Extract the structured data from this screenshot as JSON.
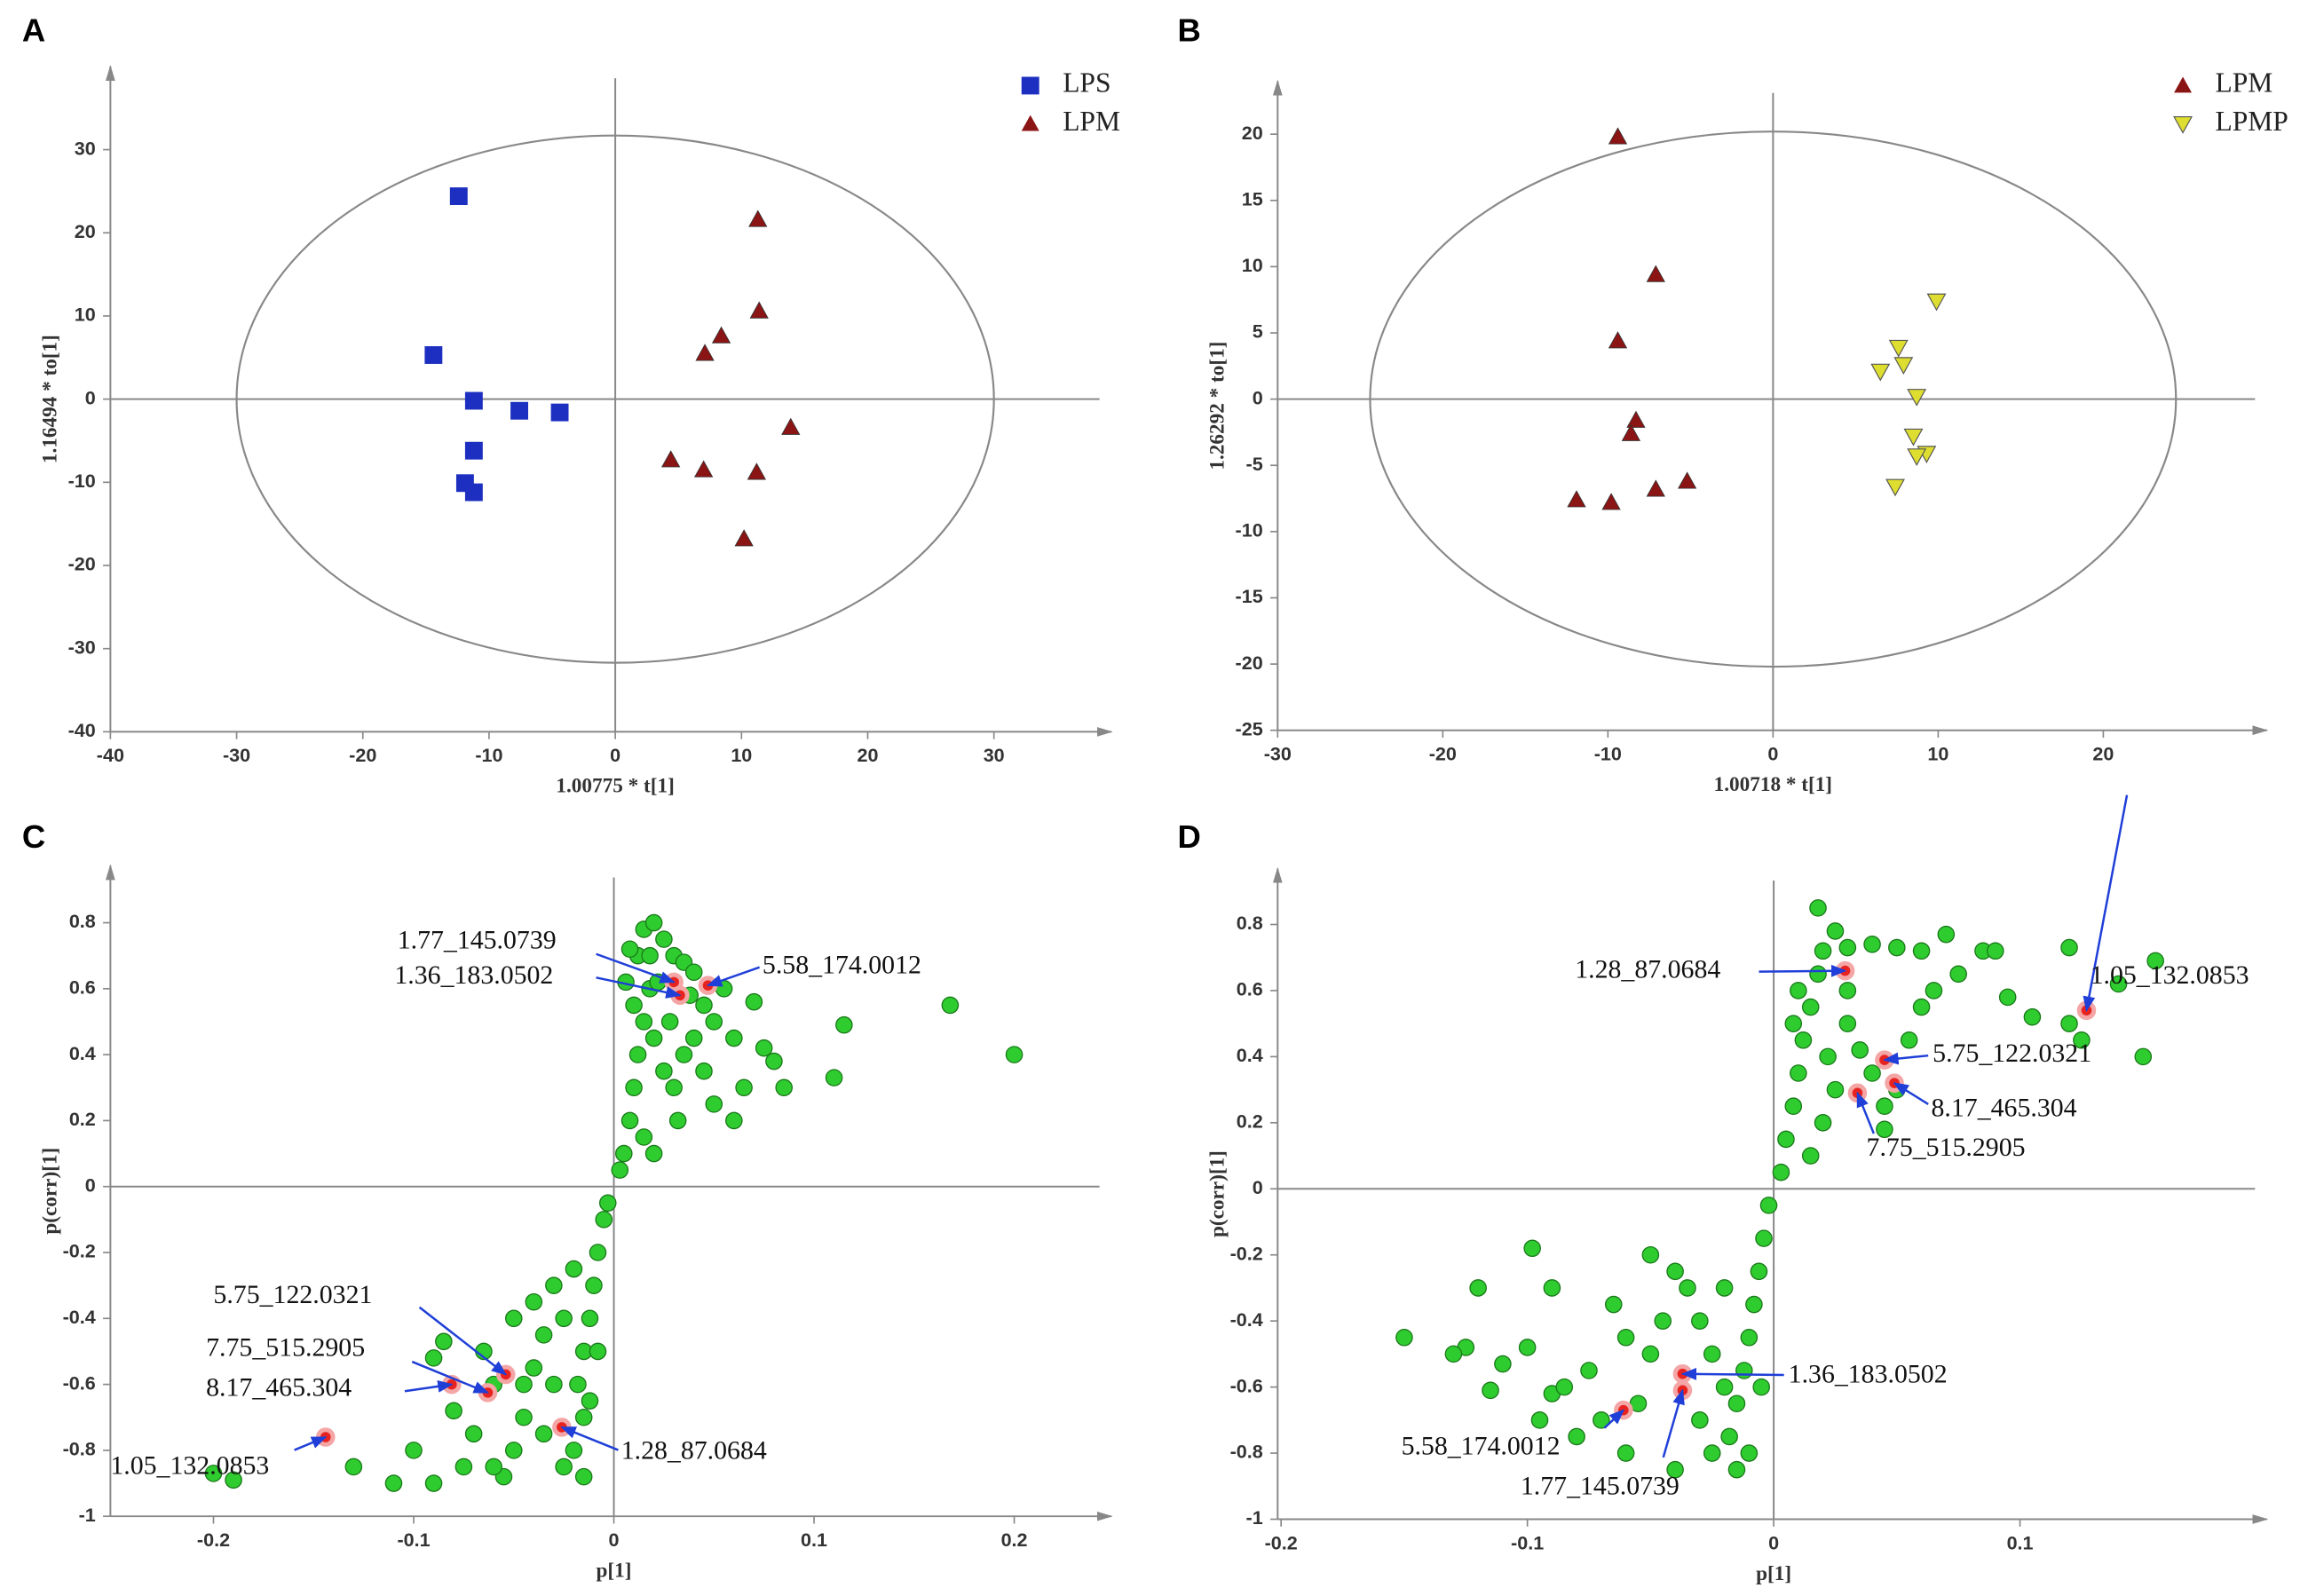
{
  "chart_data": [
    {
      "type": "scatter",
      "label": "A",
      "xlabel": "1.00775 * t[1]",
      "ylabel": "1.16494 * to[1]",
      "xlim": [
        -40,
        39.3
      ],
      "ylim": [
        -40,
        40
      ],
      "xticks": [
        -40,
        -30,
        -20,
        -10,
        0,
        10,
        20,
        30
      ],
      "yticks": [
        -40,
        -30,
        -20,
        -10,
        0,
        10,
        20,
        30
      ],
      "ellipse": {
        "rx": 30,
        "ry": 31.7
      },
      "legend": "upper right",
      "series": [
        {
          "name": "LPS",
          "color": "#1c2fc0",
          "marker": "square",
          "x": [
            -12.4,
            -14.4,
            -11.2,
            -7.6,
            -4.4,
            -11.2,
            -11.9,
            -11.2
          ],
          "values": [
            24.4,
            5.3,
            -0.2,
            -1.4,
            -1.6,
            -6.2,
            -10.1,
            -11.2
          ]
        },
        {
          "name": "LPM",
          "color": "#8b1414",
          "marker": "triangle",
          "x": [
            11.3,
            11.4,
            8.4,
            7.1,
            13.9,
            4.4,
            7.0,
            11.2,
            10.2
          ],
          "values": [
            21.6,
            10.6,
            7.6,
            5.5,
            -3.4,
            -7.3,
            -8.5,
            -8.8,
            -16.8
          ]
        }
      ]
    },
    {
      "type": "scatter",
      "label": "B",
      "xlabel": "1.00718 * t[1]",
      "ylabel": "1.26292 * to[1]",
      "xlim": [
        -30,
        29.9
      ],
      "ylim": [
        -25,
        24
      ],
      "xticks": [
        -30,
        -20,
        -10,
        0,
        10,
        20
      ],
      "yticks": [
        -25,
        -20,
        -15,
        -10,
        -5,
        0,
        5,
        10,
        15,
        20
      ],
      "ellipse": {
        "rx": 24.4,
        "ry": 20.2
      },
      "legend": "upper right",
      "series": [
        {
          "name": "LPM",
          "color": "#8b1414",
          "marker": "triangle",
          "x": [
            -9.4,
            -7.1,
            -9.4,
            -8.3,
            -8.6,
            -5.2,
            -7.1,
            -9.8,
            -11.9
          ],
          "values": [
            19.8,
            9.4,
            4.4,
            -1.6,
            -2.6,
            -6.2,
            -6.8,
            -7.8,
            -7.6
          ]
        },
        {
          "name": "LPMP",
          "color": "#dede30",
          "marker": "triangle-down",
          "x": [
            9.9,
            7.6,
            6.5,
            7.9,
            8.7,
            8.5,
            9.3,
            8.7,
            7.4
          ],
          "values": [
            7.4,
            3.9,
            2.1,
            2.6,
            0.2,
            -2.8,
            -4.1,
            -4.3,
            -6.6
          ]
        }
      ]
    },
    {
      "type": "splot",
      "label": "C",
      "xlabel": "p[1]",
      "ylabel": "p(corr)[1]",
      "xlim": [
        -0.2515,
        0.2485
      ],
      "ylim": [
        -1,
        0.973
      ],
      "xticks": [
        -0.2,
        -0.1,
        0,
        0.1,
        0.2
      ],
      "yticks": [
        -1,
        -0.8,
        -0.6,
        -0.4,
        -0.2,
        0,
        0.2,
        0.4,
        0.6,
        0.8
      ],
      "series": [
        {
          "color": "#2fcc2f",
          "marker": "circle",
          "x": [
            0.005,
            0.008,
            0.01,
            0.012,
            0.015,
            0.018,
            0.012,
            0.015,
            0.02,
            0.025,
            0.03,
            0.035,
            0.04,
            0.045,
            0.05,
            0.02,
            0.025,
            0.03,
            0.035,
            0.04,
            0.01,
            0.006,
            0.008,
            0.022,
            0.028,
            0.032,
            0.015,
            0.02,
            0.055,
            0.06,
            0.065,
            0.06,
            0.07,
            0.075,
            0.08,
            0.085,
            0.11,
            0.115,
            0.168,
            0.2,
            0.045,
            0.05,
            0.003,
            0.018,
            0.038,
            -0.003,
            -0.005,
            -0.008,
            -0.01,
            -0.012,
            -0.015,
            -0.018,
            -0.015,
            -0.02,
            -0.025,
            -0.03,
            -0.035,
            -0.04,
            -0.045,
            -0.05,
            -0.055,
            -0.06,
            -0.065,
            -0.07,
            -0.075,
            -0.085,
            -0.09,
            -0.1,
            -0.11,
            -0.19,
            -0.2,
            -0.03,
            -0.02,
            -0.025,
            -0.012,
            -0.008,
            -0.04,
            -0.035,
            -0.015,
            -0.06,
            -0.08,
            -0.09,
            -0.045,
            -0.13,
            -0.05
          ],
          "values": [
            0.1,
            0.2,
            0.3,
            0.4,
            0.5,
            0.6,
            0.7,
            0.78,
            0.8,
            0.75,
            0.7,
            0.68,
            0.65,
            0.55,
            0.5,
            0.45,
            0.35,
            0.3,
            0.4,
            0.45,
            0.55,
            0.62,
            0.72,
            0.62,
            0.5,
            0.2,
            0.15,
            0.1,
            0.6,
            0.45,
            0.3,
            0.2,
            0.56,
            0.42,
            0.38,
            0.3,
            0.33,
            0.49,
            0.55,
            0.4,
            0.35,
            0.25,
            0.05,
            0.7,
            0.58,
            -0.05,
            -0.1,
            -0.2,
            -0.3,
            -0.4,
            -0.5,
            -0.6,
            -0.7,
            -0.8,
            -0.85,
            -0.6,
            -0.45,
            -0.55,
            -0.7,
            -0.8,
            -0.88,
            -0.6,
            -0.5,
            -0.75,
            -0.85,
            -0.47,
            -0.52,
            -0.8,
            -0.9,
            -0.89,
            -0.87,
            -0.3,
            -0.25,
            -0.4,
            -0.65,
            -0.5,
            -0.35,
            -0.75,
            -0.88,
            -0.85,
            -0.68,
            -0.9,
            -0.6,
            -0.85,
            -0.4
          ]
        },
        {
          "color": "#e8231f",
          "marker": "circle",
          "point_labels": [
            "1.77_145.0739",
            "5.58_174.0012",
            "1.36_183.0502",
            "5.75_122.0321",
            "7.75_515.2905",
            "8.17_465.304",
            "1.05_132.0853",
            "1.28_87.0684"
          ],
          "x": [
            0.03,
            0.047,
            0.033,
            -0.054,
            -0.063,
            -0.081,
            -0.144,
            -0.026
          ],
          "values": [
            0.62,
            0.61,
            0.58,
            -0.57,
            -0.625,
            -0.6,
            -0.76,
            -0.73
          ]
        }
      ]
    },
    {
      "type": "splot",
      "label": "D",
      "xlabel": "p[1]",
      "ylabel": "p(corr)[1]",
      "xlim": [
        -0.2014,
        0.2002
      ],
      "ylim": [
        -1,
        0.969
      ],
      "xticks": [
        -0.2,
        -0.1,
        0,
        0.1
      ],
      "yticks": [
        -1,
        -0.8,
        -0.6,
        -0.4,
        -0.2,
        0,
        0.2,
        0.4,
        0.6,
        0.8
      ],
      "series": [
        {
          "color": "#2fcc2f",
          "marker": "circle",
          "x": [
            0.003,
            0.005,
            0.008,
            0.01,
            0.012,
            0.015,
            0.018,
            0.02,
            0.018,
            0.025,
            0.03,
            0.04,
            0.05,
            0.06,
            0.07,
            0.075,
            0.085,
            0.09,
            0.095,
            0.105,
            0.12,
            0.12,
            0.125,
            0.15,
            0.155,
            0.14,
            0.03,
            0.035,
            0.04,
            0.045,
            0.05,
            0.055,
            0.06,
            0.065,
            0.025,
            0.02,
            0.03,
            0.045,
            0.015,
            0.01,
            0.022,
            0.008,
            -0.002,
            -0.004,
            -0.006,
            -0.008,
            -0.01,
            -0.012,
            -0.015,
            -0.018,
            -0.015,
            -0.02,
            -0.025,
            -0.03,
            -0.035,
            -0.04,
            -0.045,
            -0.05,
            -0.055,
            -0.06,
            -0.065,
            -0.07,
            -0.075,
            -0.08,
            -0.09,
            -0.098,
            -0.1,
            -0.11,
            -0.12,
            -0.125,
            -0.13,
            -0.15,
            -0.095,
            -0.09,
            -0.06,
            -0.04,
            -0.025,
            -0.01,
            -0.03,
            -0.05,
            -0.02,
            -0.005,
            -0.115,
            -0.085
          ],
          "values": [
            0.05,
            0.15,
            0.25,
            0.35,
            0.45,
            0.55,
            0.65,
            0.72,
            0.85,
            0.78,
            0.73,
            0.74,
            0.73,
            0.72,
            0.77,
            0.65,
            0.72,
            0.72,
            0.58,
            0.52,
            0.5,
            0.73,
            0.45,
            0.4,
            0.69,
            0.62,
            0.5,
            0.42,
            0.35,
            0.25,
            0.3,
            0.45,
            0.55,
            0.6,
            0.3,
            0.2,
            0.6,
            0.18,
            0.1,
            0.6,
            0.4,
            0.5,
            -0.05,
            -0.15,
            -0.25,
            -0.35,
            -0.45,
            -0.55,
            -0.65,
            -0.75,
            -0.85,
            -0.6,
            -0.5,
            -0.4,
            -0.3,
            -0.25,
            -0.4,
            -0.5,
            -0.65,
            -0.45,
            -0.35,
            -0.7,
            -0.55,
            -0.75,
            -0.62,
            -0.18,
            -0.48,
            -0.53,
            -0.3,
            -0.48,
            -0.5,
            -0.45,
            -0.7,
            -0.3,
            -0.8,
            -0.85,
            -0.8,
            -0.8,
            -0.7,
            -0.2,
            -0.3,
            -0.6,
            -0.61,
            -0.6
          ]
        },
        {
          "color": "#e8231f",
          "marker": "circle",
          "point_labels": [
            "1.28_87.0684",
            "1.05_132.0853",
            "5.75_122.0321",
            "8.17_465.304",
            "7.75_515.2905",
            "1.36_183.0502",
            "5.58_174.0012",
            "1.77_145.0739"
          ],
          "x": [
            0.029,
            0.127,
            0.045,
            0.049,
            0.034,
            -0.037,
            -0.061,
            -0.037
          ],
          "values": [
            0.66,
            0.54,
            0.39,
            0.32,
            0.29,
            -0.56,
            -0.67,
            -0.61
          ]
        }
      ]
    }
  ]
}
